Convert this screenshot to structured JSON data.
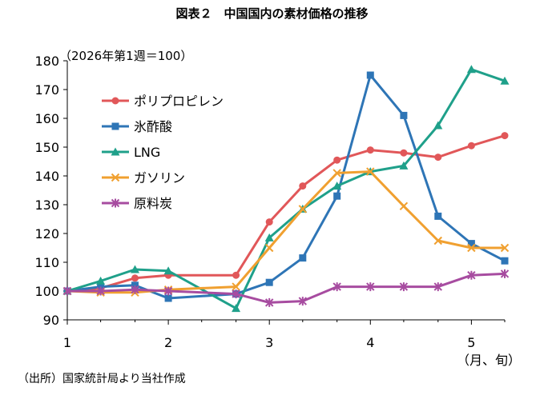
{
  "chart_data": {
    "type": "line",
    "title": "図表２　中国国内の素材価格の推移",
    "note": "（2026年第1週＝100）",
    "x_unit_label": "（月、旬）",
    "source": "（出所）国家統計局より当社作成",
    "xlabel": "",
    "ylabel": "",
    "ylim": [
      90,
      180
    ],
    "yticks": [
      "90",
      "100",
      "110",
      "120",
      "130",
      "140",
      "150",
      "160",
      "170",
      "180"
    ],
    "xlim": [
      1,
      5.33
    ],
    "xticks": [
      "1",
      "2",
      "3",
      "4",
      "5"
    ],
    "grid": false,
    "legend_position": "top-left",
    "x": [
      1.0,
      1.33,
      1.67,
      2.0,
      2.33,
      2.67,
      3.0,
      3.33,
      3.67,
      4.0,
      4.33,
      4.67,
      5.0,
      5.33
    ],
    "series": [
      {
        "name": "ポリプロピレン",
        "color": "#e15759",
        "marker": "circle",
        "values": [
          100,
          101,
          104.5,
          105.5,
          null,
          105.5,
          124,
          136.5,
          145.5,
          149,
          148,
          146.5,
          150.5,
          154
        ]
      },
      {
        "name": "氷酢酸",
        "color": "#2e75b6",
        "marker": "square",
        "values": [
          100,
          101.5,
          102,
          97.5,
          null,
          99,
          103,
          111.5,
          133,
          175,
          161,
          126,
          116.5,
          110.5
        ]
      },
      {
        "name": "LNG",
        "color": "#1fa08a",
        "marker": "triangle",
        "values": [
          100,
          103.5,
          107.5,
          107,
          null,
          94,
          118.5,
          128.5,
          136.5,
          141.5,
          143.5,
          157.5,
          177,
          173
        ]
      },
      {
        "name": "ガソリン",
        "color": "#f0a030",
        "marker": "x",
        "values": [
          100,
          99.5,
          99.5,
          100.5,
          null,
          101.5,
          115,
          128.5,
          141,
          141.5,
          129.5,
          117.5,
          115,
          115
        ]
      },
      {
        "name": "原料炭",
        "color": "#a74ca0",
        "marker": "star",
        "values": [
          100,
          100,
          100.5,
          100,
          null,
          99,
          96,
          96.5,
          101.5,
          101.5,
          101.5,
          101.5,
          105.5,
          106
        ]
      }
    ]
  }
}
